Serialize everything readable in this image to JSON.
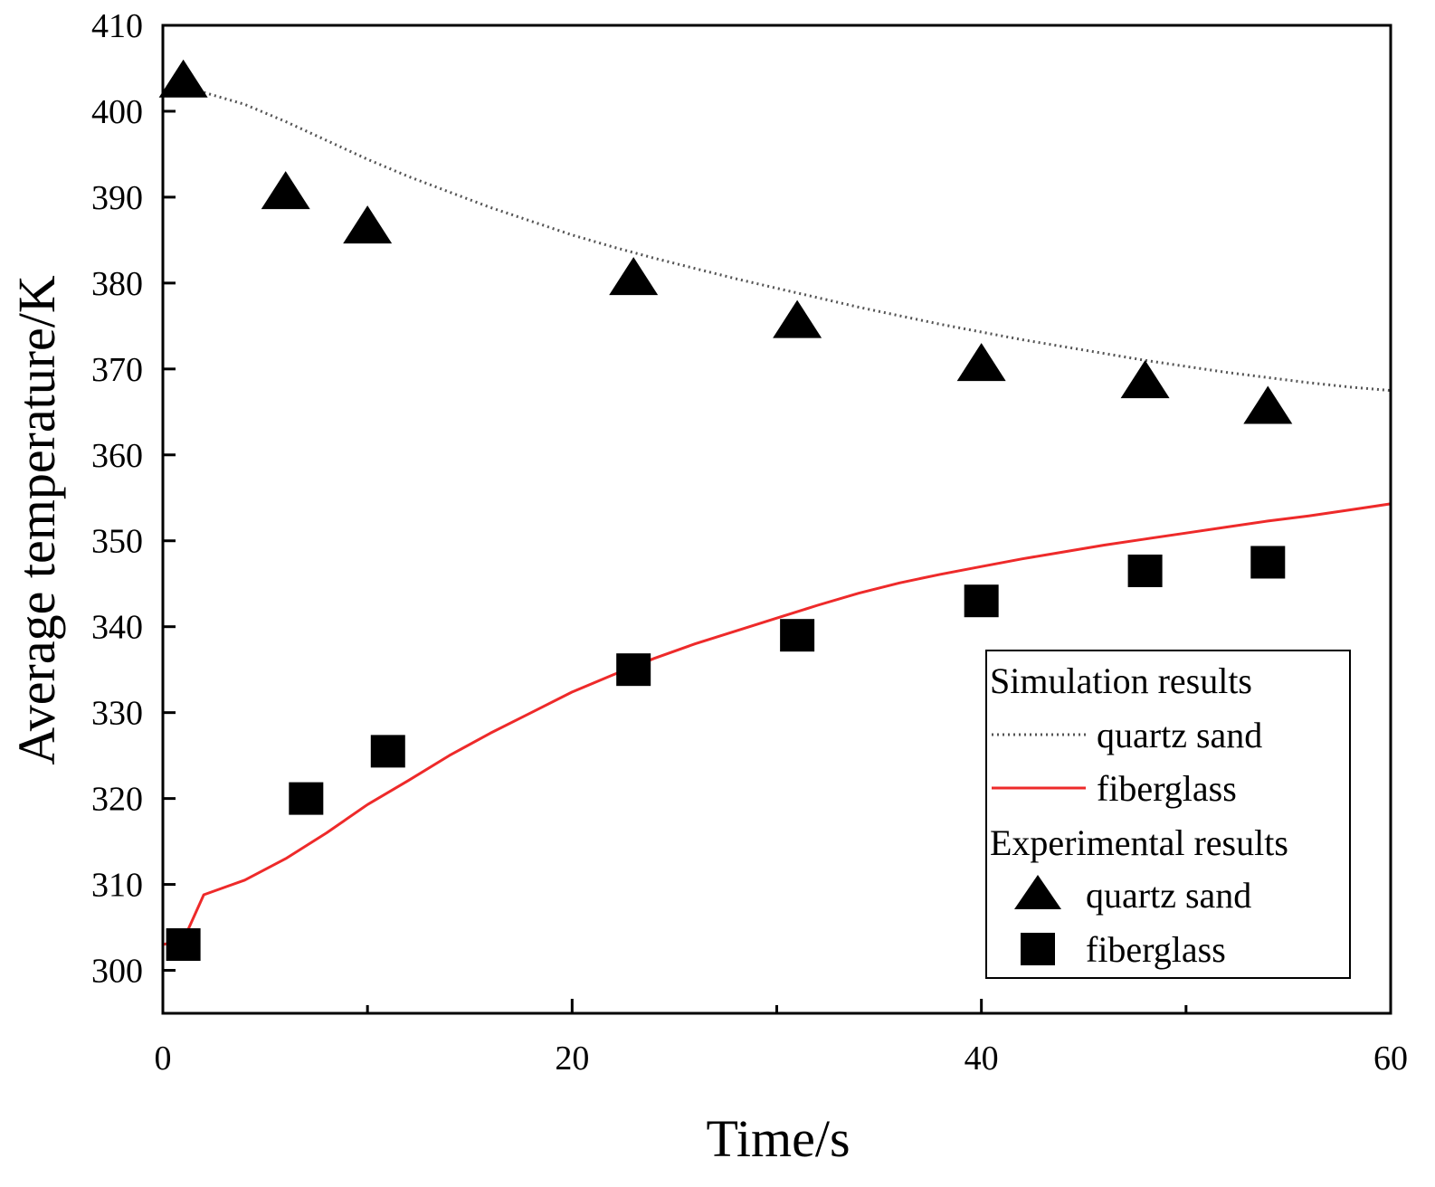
{
  "chart_data": {
    "type": "line",
    "title": "",
    "xlabel": "Time/s",
    "ylabel": "Average temperature/K",
    "xlim": [
      0,
      60
    ],
    "ylim": [
      295,
      410
    ],
    "xticks": [
      0,
      20,
      40,
      60
    ],
    "xticks_minor": [
      10,
      30,
      50
    ],
    "yticks": [
      300,
      310,
      320,
      330,
      340,
      350,
      360,
      370,
      380,
      390,
      400,
      410
    ],
    "grid": false,
    "legend": {
      "position": "bottom-right",
      "sim_heading": "Simulation results",
      "exp_heading": "Experimental results"
    },
    "series": [
      {
        "name": "quartz sand",
        "group": "Simulation results",
        "style": "dotted",
        "color": "#555555",
        "x": [
          1,
          2,
          4,
          6,
          8,
          10,
          12,
          14,
          16,
          18,
          20,
          22,
          24,
          26,
          28,
          30,
          32,
          34,
          36,
          38,
          40,
          42,
          44,
          46,
          48,
          50,
          52,
          54,
          56,
          58,
          60
        ],
        "y": [
          403,
          402.2,
          400.8,
          398.8,
          396.6,
          394.4,
          392.4,
          390.6,
          388.8,
          387.2,
          385.6,
          384.2,
          382.9,
          381.7,
          380.5,
          379.4,
          378.3,
          377.2,
          376.2,
          375.2,
          374.3,
          373.4,
          372.6,
          371.8,
          371,
          370.3,
          369.6,
          369,
          368.4,
          367.9,
          367.5
        ]
      },
      {
        "name": "fiberglass",
        "group": "Simulation results",
        "style": "solid",
        "color": "#ee2a2a",
        "x": [
          0,
          1,
          2,
          4,
          6,
          8,
          10,
          12,
          14,
          16,
          18,
          20,
          22,
          24,
          26,
          28,
          30,
          32,
          34,
          36,
          38,
          40,
          42,
          44,
          46,
          48,
          50,
          52,
          54,
          56,
          58,
          60
        ],
        "y": [
          303,
          303.5,
          308.8,
          310.5,
          313,
          316,
          319.3,
          322.1,
          325,
          327.6,
          330,
          332.4,
          334.4,
          336.3,
          338,
          339.5,
          341,
          342.5,
          343.9,
          345.1,
          346.1,
          347,
          347.9,
          348.7,
          349.5,
          350.2,
          350.9,
          351.6,
          352.3,
          352.9,
          353.6,
          354.3
        ]
      },
      {
        "name": "quartz sand",
        "group": "Experimental results",
        "style": "triangle",
        "color": "#000000",
        "x": [
          1,
          6,
          10,
          23,
          31,
          40,
          48,
          54
        ],
        "y": [
          403.5,
          390.5,
          386.5,
          380.5,
          375.5,
          370.5,
          368.5,
          365.5
        ]
      },
      {
        "name": "fiberglass",
        "group": "Experimental results",
        "style": "square",
        "color": "#000000",
        "x": [
          1,
          7,
          11,
          23,
          31,
          40,
          48,
          54
        ],
        "y": [
          303,
          320,
          325.5,
          335,
          339,
          343,
          346.5,
          347.5
        ]
      }
    ]
  }
}
